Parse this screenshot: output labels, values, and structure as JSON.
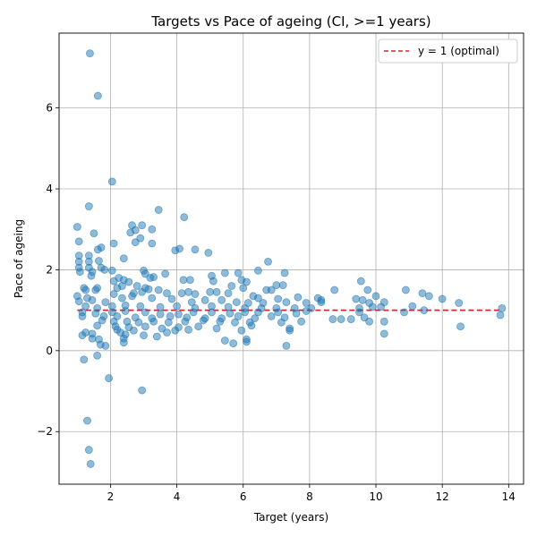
{
  "chart_data": {
    "type": "scatter",
    "title": "Targets vs Pace of ageing (CI, >=1 years)",
    "xlabel": "Target (years)",
    "ylabel": "Pace of ageing",
    "xlim": [
      0.45,
      14.45
    ],
    "ylim": [
      -3.3,
      7.85
    ],
    "xticks": [
      2,
      4,
      6,
      8,
      10,
      12,
      14
    ],
    "yticks": [
      -2,
      0,
      2,
      4,
      6
    ],
    "grid": true,
    "legend_position": "upper-right",
    "colors": {
      "points": "#1f77b4",
      "reference_line": "#d62728"
    },
    "reference_line": {
      "y": 1,
      "label": "y = 1 (optimal)",
      "x_range": [
        1.0,
        13.8
      ]
    },
    "series": [
      {
        "points": [
          [
            1.38,
            7.35
          ],
          [
            1.62,
            6.3
          ],
          [
            2.05,
            4.18
          ],
          [
            1.35,
            3.57
          ],
          [
            3.45,
            3.48
          ],
          [
            4.22,
            3.3
          ],
          [
            2.65,
            3.1
          ],
          [
            2.95,
            3.1
          ],
          [
            1.0,
            3.06
          ],
          [
            3.25,
            3.0
          ],
          [
            2.75,
            2.98
          ],
          [
            2.6,
            2.92
          ],
          [
            1.5,
            2.9
          ],
          [
            2.9,
            2.78
          ],
          [
            1.05,
            2.7
          ],
          [
            2.75,
            2.68
          ],
          [
            3.25,
            2.65
          ],
          [
            2.1,
            2.65
          ],
          [
            1.72,
            2.55
          ],
          [
            1.62,
            2.5
          ],
          [
            4.08,
            2.52
          ],
          [
            4.55,
            2.5
          ],
          [
            3.95,
            2.48
          ],
          [
            4.95,
            2.42
          ],
          [
            1.05,
            2.35
          ],
          [
            1.35,
            2.35
          ],
          [
            2.4,
            2.28
          ],
          [
            1.05,
            2.2
          ],
          [
            1.35,
            2.2
          ],
          [
            1.65,
            2.22
          ],
          [
            6.75,
            2.2
          ],
          [
            1.05,
            2.05
          ],
          [
            1.35,
            2.05
          ],
          [
            1.72,
            2.05
          ],
          [
            1.82,
            2.0
          ],
          [
            1.45,
            1.95
          ],
          [
            2.05,
            1.98
          ],
          [
            3.0,
            1.98
          ],
          [
            5.45,
            1.92
          ],
          [
            5.85,
            1.92
          ],
          [
            6.45,
            1.98
          ],
          [
            7.25,
            1.92
          ],
          [
            1.08,
            1.95
          ],
          [
            1.42,
            1.85
          ],
          [
            3.05,
            1.9
          ],
          [
            3.65,
            1.9
          ],
          [
            2.25,
            1.8
          ],
          [
            3.2,
            1.8
          ],
          [
            4.2,
            1.75
          ],
          [
            4.4,
            1.75
          ],
          [
            5.05,
            1.85
          ],
          [
            5.95,
            1.75
          ],
          [
            6.1,
            1.7
          ],
          [
            2.1,
            1.72
          ],
          [
            2.4,
            1.75
          ],
          [
            2.55,
            1.7
          ],
          [
            3.3,
            1.82
          ],
          [
            5.1,
            1.72
          ],
          [
            7.0,
            1.62
          ],
          [
            7.2,
            1.62
          ],
          [
            9.55,
            1.72
          ],
          [
            1.2,
            1.55
          ],
          [
            1.6,
            1.55
          ],
          [
            1.25,
            1.5
          ],
          [
            1.55,
            1.5
          ],
          [
            2.2,
            1.55
          ],
          [
            2.35,
            1.6
          ],
          [
            2.8,
            1.6
          ],
          [
            3.05,
            1.55
          ],
          [
            3.15,
            1.52
          ],
          [
            3.45,
            1.5
          ],
          [
            4.35,
            1.45
          ],
          [
            5.0,
            1.45
          ],
          [
            5.65,
            1.6
          ],
          [
            6.0,
            1.55
          ],
          [
            6.7,
            1.5
          ],
          [
            6.85,
            1.5
          ],
          [
            8.75,
            1.5
          ],
          [
            9.75,
            1.5
          ],
          [
            10.9,
            1.5
          ],
          [
            11.4,
            1.42
          ],
          [
            11.6,
            1.35
          ],
          [
            12.0,
            1.28
          ],
          [
            12.5,
            1.18
          ],
          [
            1.0,
            1.35
          ],
          [
            1.3,
            1.3
          ],
          [
            2.1,
            1.4
          ],
          [
            2.7,
            1.42
          ],
          [
            2.95,
            1.45
          ],
          [
            3.7,
            1.42
          ],
          [
            4.15,
            1.42
          ],
          [
            4.55,
            1.4
          ],
          [
            5.2,
            1.45
          ],
          [
            5.55,
            1.42
          ],
          [
            6.3,
            1.35
          ],
          [
            6.45,
            1.3
          ],
          [
            7.05,
            1.28
          ],
          [
            7.65,
            1.32
          ],
          [
            8.25,
            1.3
          ],
          [
            8.35,
            1.25
          ],
          [
            9.4,
            1.28
          ],
          [
            9.6,
            1.25
          ],
          [
            10.0,
            1.35
          ],
          [
            10.25,
            1.2
          ],
          [
            11.1,
            1.1
          ],
          [
            11.45,
            1.0
          ],
          [
            12.55,
            0.6
          ],
          [
            13.8,
            1.05
          ],
          [
            13.75,
            0.88
          ],
          [
            1.05,
            1.22
          ],
          [
            1.45,
            1.25
          ],
          [
            1.85,
            1.2
          ],
          [
            2.35,
            1.3
          ],
          [
            2.65,
            1.35
          ],
          [
            3.25,
            1.3
          ],
          [
            3.85,
            1.28
          ],
          [
            4.45,
            1.2
          ],
          [
            4.85,
            1.25
          ],
          [
            5.35,
            1.25
          ],
          [
            5.8,
            1.2
          ],
          [
            6.15,
            1.18
          ],
          [
            6.6,
            1.18
          ],
          [
            7.3,
            1.2
          ],
          [
            7.9,
            1.18
          ],
          [
            8.35,
            1.2
          ],
          [
            9.8,
            1.18
          ],
          [
            1.25,
            1.1
          ],
          [
            1.6,
            1.05
          ],
          [
            2.05,
            1.1
          ],
          [
            2.45,
            1.12
          ],
          [
            2.9,
            1.1
          ],
          [
            3.5,
            1.08
          ],
          [
            4.0,
            1.1
          ],
          [
            4.55,
            1.05
          ],
          [
            5.05,
            1.1
          ],
          [
            5.55,
            1.08
          ],
          [
            6.05,
            1.05
          ],
          [
            6.55,
            1.05
          ],
          [
            7.0,
            1.05
          ],
          [
            7.55,
            1.05
          ],
          [
            8.05,
            1.05
          ],
          [
            9.5,
            1.05
          ],
          [
            9.9,
            1.08
          ],
          [
            10.15,
            1.08
          ],
          [
            1.15,
            0.95
          ],
          [
            1.55,
            0.92
          ],
          [
            2.05,
            0.95
          ],
          [
            2.45,
            0.98
          ],
          [
            3.05,
            0.95
          ],
          [
            3.5,
            0.9
          ],
          [
            4.05,
            0.9
          ],
          [
            4.5,
            0.95
          ],
          [
            5.05,
            0.95
          ],
          [
            5.6,
            0.92
          ],
          [
            6.05,
            0.95
          ],
          [
            6.45,
            0.95
          ],
          [
            7.05,
            0.95
          ],
          [
            7.6,
            0.92
          ],
          [
            7.9,
            0.98
          ],
          [
            9.5,
            0.95
          ],
          [
            10.85,
            0.95
          ],
          [
            1.15,
            0.85
          ],
          [
            1.8,
            0.85
          ],
          [
            2.2,
            0.85
          ],
          [
            2.75,
            0.82
          ],
          [
            3.25,
            0.8
          ],
          [
            3.8,
            0.85
          ],
          [
            4.3,
            0.82
          ],
          [
            4.85,
            0.8
          ],
          [
            5.35,
            0.8
          ],
          [
            5.85,
            0.85
          ],
          [
            6.35,
            0.8
          ],
          [
            6.85,
            0.85
          ],
          [
            7.25,
            0.82
          ],
          [
            8.7,
            0.78
          ],
          [
            8.95,
            0.78
          ],
          [
            9.25,
            0.78
          ],
          [
            9.65,
            0.82
          ],
          [
            1.75,
            0.75
          ],
          [
            2.1,
            0.72
          ],
          [
            2.5,
            0.72
          ],
          [
            2.85,
            0.7
          ],
          [
            3.3,
            0.72
          ],
          [
            3.75,
            0.7
          ],
          [
            4.25,
            0.72
          ],
          [
            4.8,
            0.75
          ],
          [
            5.3,
            0.72
          ],
          [
            5.75,
            0.7
          ],
          [
            6.2,
            0.7
          ],
          [
            7.15,
            0.7
          ],
          [
            7.75,
            0.72
          ],
          [
            9.8,
            0.72
          ],
          [
            10.25,
            0.72
          ],
          [
            1.6,
            0.62
          ],
          [
            2.15,
            0.6
          ],
          [
            2.55,
            0.58
          ],
          [
            3.05,
            0.6
          ],
          [
            3.55,
            0.55
          ],
          [
            4.05,
            0.58
          ],
          [
            4.65,
            0.6
          ],
          [
            5.2,
            0.55
          ],
          [
            6.25,
            0.62
          ],
          [
            7.4,
            0.55
          ],
          [
            2.2,
            0.52
          ],
          [
            2.7,
            0.5
          ],
          [
            3.95,
            0.5
          ],
          [
            4.35,
            0.52
          ],
          [
            5.95,
            0.5
          ],
          [
            7.4,
            0.5
          ],
          [
            1.25,
            0.45
          ],
          [
            1.45,
            0.42
          ],
          [
            2.3,
            0.45
          ],
          [
            3.7,
            0.45
          ],
          [
            10.25,
            0.42
          ],
          [
            1.15,
            0.38
          ],
          [
            2.45,
            0.4
          ],
          [
            3.0,
            0.38
          ],
          [
            3.4,
            0.35
          ],
          [
            1.45,
            0.3
          ],
          [
            1.65,
            0.28
          ],
          [
            2.4,
            0.3
          ],
          [
            5.45,
            0.25
          ],
          [
            6.1,
            0.28
          ],
          [
            2.4,
            0.2
          ],
          [
            1.7,
            0.15
          ],
          [
            1.85,
            0.12
          ],
          [
            5.7,
            0.18
          ],
          [
            6.1,
            0.22
          ],
          [
            7.3,
            0.12
          ],
          [
            1.6,
            -0.12
          ],
          [
            1.2,
            -0.22
          ],
          [
            1.95,
            -0.68
          ],
          [
            2.95,
            -0.98
          ],
          [
            1.3,
            -1.73
          ],
          [
            1.35,
            -2.45
          ],
          [
            1.4,
            -2.8
          ]
        ]
      }
    ]
  }
}
